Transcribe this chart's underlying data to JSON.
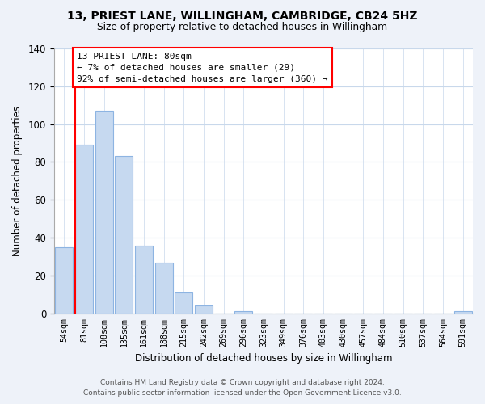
{
  "title": "13, PRIEST LANE, WILLINGHAM, CAMBRIDGE, CB24 5HZ",
  "subtitle": "Size of property relative to detached houses in Willingham",
  "xlabel": "Distribution of detached houses by size in Willingham",
  "ylabel": "Number of detached properties",
  "bar_labels": [
    "54sqm",
    "81sqm",
    "108sqm",
    "135sqm",
    "161sqm",
    "188sqm",
    "215sqm",
    "242sqm",
    "269sqm",
    "296sqm",
    "323sqm",
    "349sqm",
    "376sqm",
    "403sqm",
    "430sqm",
    "457sqm",
    "484sqm",
    "510sqm",
    "537sqm",
    "564sqm",
    "591sqm"
  ],
  "bar_values": [
    35,
    89,
    107,
    83,
    36,
    27,
    11,
    4,
    0,
    1,
    0,
    0,
    0,
    0,
    0,
    0,
    0,
    0,
    0,
    0,
    1
  ],
  "bar_color": "#c6d9f0",
  "bar_edge_color": "#8db4e2",
  "ylim": [
    0,
    140
  ],
  "yticks": [
    0,
    20,
    40,
    60,
    80,
    100,
    120,
    140
  ],
  "property_line_label": "13 PRIEST LANE: 80sqm",
  "annotation_line1": "← 7% of detached houses are smaller (29)",
  "annotation_line2": "92% of semi-detached houses are larger (360) →",
  "footer_line1": "Contains HM Land Registry data © Crown copyright and database right 2024.",
  "footer_line2": "Contains public sector information licensed under the Open Government Licence v3.0.",
  "bg_color": "#eef2f9",
  "plot_bg_color": "#ffffff",
  "grid_color": "#c8d8eb"
}
